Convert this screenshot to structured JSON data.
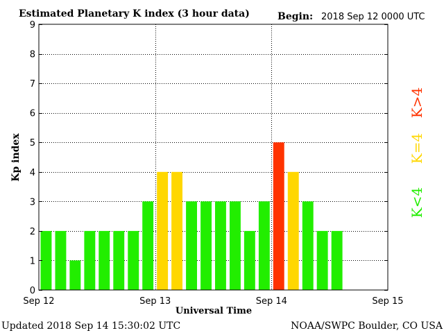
{
  "header": {
    "title": "Estimated Planetary K index (3 hour data)",
    "begin_label": "Begin:",
    "begin_value": "2018 Sep 12 0000 UTC"
  },
  "footer": {
    "updated": "Updated 2018 Sep 14 15:30:02 UTC",
    "source": "NOAA/SWPC Boulder, CO USA"
  },
  "legend": {
    "low": "K<4",
    "mid": "K=4",
    "high": "K>4"
  },
  "colors": {
    "low": "#22ee00",
    "mid": "#ffd700",
    "high": "#ff3300"
  },
  "chart_data": {
    "type": "bar",
    "title": "Estimated Planetary K index (3 hour data)",
    "xlabel": "Universal Time",
    "ylabel": "Kp index",
    "ylim": [
      0,
      9
    ],
    "yticks": [
      0,
      1,
      2,
      3,
      4,
      5,
      6,
      7,
      8,
      9
    ],
    "x_tick_labels": [
      "Sep 12",
      "Sep 13",
      "Sep 14",
      "Sep 15"
    ],
    "grid": true,
    "bin_hours": 3,
    "bins_total": 24,
    "categories": [
      "Sep 12 00",
      "Sep 12 03",
      "Sep 12 06",
      "Sep 12 09",
      "Sep 12 12",
      "Sep 12 15",
      "Sep 12 18",
      "Sep 12 21",
      "Sep 13 00",
      "Sep 13 03",
      "Sep 13 06",
      "Sep 13 09",
      "Sep 13 12",
      "Sep 13 15",
      "Sep 13 18",
      "Sep 13 21",
      "Sep 14 00",
      "Sep 14 03",
      "Sep 14 06",
      "Sep 14 09",
      "Sep 14 12"
    ],
    "values": [
      2,
      2,
      1,
      2,
      2,
      2,
      2,
      3,
      4,
      4,
      3,
      3,
      3,
      3,
      2,
      3,
      5,
      4,
      3,
      2,
      2
    ]
  }
}
